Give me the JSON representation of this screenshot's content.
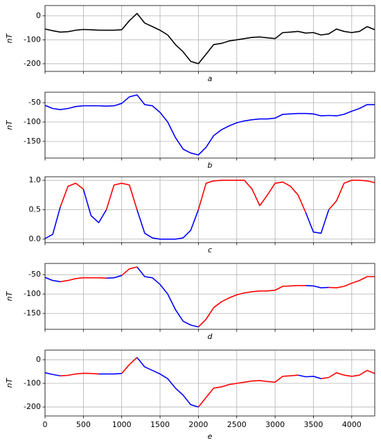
{
  "chart_data": [
    {
      "type": "line",
      "xlabel": "a",
      "ylabel": "nT",
      "grid": true,
      "x": [
        0,
        100,
        200,
        300,
        400,
        500,
        600,
        700,
        800,
        900,
        1000,
        1100,
        1200,
        1300,
        1400,
        1500,
        1600,
        1700,
        1800,
        1900,
        2000,
        2100,
        2200,
        2300,
        2400,
        2500,
        2600,
        2700,
        2800,
        2900,
        3000,
        3100,
        3200,
        3300,
        3400,
        3500,
        3600,
        3700,
        3800,
        3900,
        4000,
        4100,
        4200,
        4300
      ],
      "xlim": [
        0,
        4300
      ],
      "ylim": [
        -232,
        43
      ],
      "xticks": [
        0,
        500,
        1000,
        1500,
        2000,
        2500,
        3000,
        3500,
        4000
      ],
      "yticks": [
        0,
        -100,
        -200
      ],
      "series": [
        {
          "color": "#000000",
          "values": [
            -55,
            -62,
            -68,
            -66,
            -60,
            -57,
            -58,
            -60,
            -60,
            -60,
            -58,
            -20,
            10,
            -30,
            -45,
            -60,
            -80,
            -120,
            -150,
            -190,
            -200,
            -160,
            -120,
            -115,
            -105,
            -100,
            -95,
            -90,
            -88,
            -92,
            -95,
            -70,
            -68,
            -65,
            -72,
            -70,
            -80,
            -75,
            -55,
            -65,
            -70,
            -65,
            -45,
            -58
          ]
        }
      ]
    },
    {
      "type": "line",
      "xlabel": "b",
      "ylabel": "nT",
      "grid": true,
      "x": [
        0,
        100,
        200,
        300,
        400,
        500,
        600,
        700,
        800,
        900,
        1000,
        1100,
        1200,
        1300,
        1400,
        1500,
        1600,
        1700,
        1800,
        1900,
        2000,
        2100,
        2200,
        2300,
        2400,
        2500,
        2600,
        2700,
        2800,
        2900,
        3000,
        3100,
        3200,
        3300,
        3400,
        3500,
        3600,
        3700,
        3800,
        3900,
        4000,
        4100,
        4200,
        4300
      ],
      "xlim": [
        0,
        4300
      ],
      "ylim": [
        -193,
        -23
      ],
      "xticks": [
        0,
        500,
        1000,
        1500,
        2000,
        2500,
        3000,
        3500,
        4000
      ],
      "yticks": [
        -50,
        -100,
        -150
      ],
      "series": [
        {
          "color": "#0000ff",
          "values": [
            -57,
            -65,
            -68,
            -65,
            -60,
            -58,
            -58,
            -58,
            -59,
            -58,
            -52,
            -35,
            -30,
            -55,
            -58,
            -75,
            -100,
            -140,
            -170,
            -180,
            -185,
            -165,
            -135,
            -120,
            -110,
            -102,
            -97,
            -94,
            -92,
            -92,
            -90,
            -80,
            -79,
            -78,
            -78,
            -79,
            -84,
            -83,
            -84,
            -80,
            -72,
            -65,
            -55,
            -55
          ]
        }
      ]
    },
    {
      "type": "line",
      "xlabel": "c",
      "grid": true,
      "x": [
        0,
        100,
        200,
        300,
        400,
        500,
        600,
        700,
        800,
        900,
        1000,
        1100,
        1200,
        1300,
        1400,
        1500,
        1600,
        1700,
        1800,
        1900,
        2000,
        2100,
        2200,
        2300,
        2400,
        2500,
        2600,
        2700,
        2800,
        2900,
        3000,
        3100,
        3200,
        3300,
        3400,
        3500,
        3600,
        3700,
        3800,
        3900,
        4000,
        4100,
        4200,
        4300
      ],
      "xlim": [
        0,
        4300
      ],
      "ylim": [
        -0.06,
        1.06
      ],
      "xticks": [
        0,
        500,
        1000,
        1500,
        2000,
        2500,
        3000,
        3500,
        4000
      ],
      "yticks": [
        {
          "value": 0,
          "label": "0.0"
        },
        {
          "value": 0.5,
          "label": "0.5"
        },
        {
          "value": 1,
          "label": "1.0"
        }
      ],
      "series": [
        {
          "color": "#ff0000",
          "values": [
            null,
            null,
            0.55,
            0.9,
            0.95,
            0.85,
            null,
            null,
            0.5,
            0.92,
            0.95,
            0.92,
            0.5,
            null,
            null,
            null,
            null,
            null,
            null,
            null,
            0.5,
            0.95,
            0.99,
            1,
            1,
            1,
            1,
            0.85,
            0.57,
            0.75,
            0.95,
            0.97,
            0.9,
            0.75,
            0.45,
            null,
            null,
            0.5,
            0.65,
            0.95,
            1,
            1,
            0.99,
            0.96
          ]
        },
        {
          "color": "#0000ff",
          "values": [
            0.01,
            0.08,
            0.55,
            null,
            null,
            0.85,
            0.4,
            0.28,
            0.5,
            null,
            null,
            null,
            0.5,
            0.1,
            0.02,
            0,
            0,
            0,
            0.02,
            0.15,
            0.5,
            null,
            null,
            null,
            null,
            null,
            null,
            null,
            null,
            null,
            null,
            null,
            null,
            null,
            0.45,
            0.12,
            0.1,
            0.5,
            null,
            null,
            null,
            null,
            null,
            null
          ]
        }
      ]
    },
    {
      "type": "line",
      "xlabel": "d",
      "ylabel": "nT",
      "grid": true,
      "x": [
        0,
        100,
        200,
        300,
        400,
        500,
        600,
        700,
        800,
        900,
        1000,
        1100,
        1200,
        1300,
        1400,
        1500,
        1600,
        1700,
        1800,
        1900,
        2000,
        2100,
        2200,
        2300,
        2400,
        2500,
        2600,
        2700,
        2800,
        2900,
        3000,
        3100,
        3200,
        3300,
        3400,
        3500,
        3600,
        3700,
        3800,
        3900,
        4000,
        4100,
        4200,
        4300
      ],
      "xlim": [
        0,
        4300
      ],
      "ylim": [
        -191,
        -21
      ],
      "xticks": [
        0,
        500,
        1000,
        1500,
        2000,
        2500,
        3000,
        3500,
        4000
      ],
      "yticks": [
        -50,
        -100,
        -150
      ],
      "series": [
        {
          "color": "#ff0000",
          "values": [
            null,
            null,
            -68,
            -65,
            -60,
            -58,
            -58,
            -58,
            -59,
            null,
            -52,
            -35,
            -30,
            null,
            null,
            null,
            null,
            null,
            null,
            null,
            -185,
            -165,
            -135,
            -120,
            -110,
            -102,
            -97,
            -94,
            -92,
            -92,
            -90,
            -80,
            -79,
            -78,
            -78,
            null,
            null,
            -83,
            -84,
            -80,
            -72,
            -65,
            -55,
            -55
          ]
        },
        {
          "color": "#0000ff",
          "values": [
            -57,
            -65,
            -68,
            null,
            null,
            null,
            null,
            null,
            -59,
            -58,
            -52,
            null,
            -30,
            -55,
            -58,
            -75,
            -100,
            -140,
            -170,
            -180,
            -185,
            null,
            null,
            null,
            null,
            null,
            null,
            null,
            null,
            null,
            null,
            null,
            null,
            null,
            -78,
            -79,
            -84,
            -83,
            null,
            null,
            null,
            null,
            null,
            null
          ]
        }
      ]
    },
    {
      "type": "line",
      "xlabel": "e",
      "ylabel": "nT",
      "grid": true,
      "x": [
        0,
        100,
        200,
        300,
        400,
        500,
        600,
        700,
        800,
        900,
        1000,
        1100,
        1200,
        1300,
        1400,
        1500,
        1600,
        1700,
        1800,
        1900,
        2000,
        2100,
        2200,
        2300,
        2400,
        2500,
        2600,
        2700,
        2800,
        2900,
        3000,
        3100,
        3200,
        3300,
        3400,
        3500,
        3600,
        3700,
        3800,
        3900,
        4000,
        4100,
        4200,
        4300
      ],
      "xlim": [
        0,
        4300
      ],
      "ylim": [
        -238,
        41
      ],
      "xticks": [
        0,
        500,
        1000,
        1500,
        2000,
        2500,
        3000,
        3500,
        4000
      ],
      "yticks": [
        0,
        -100,
        -200
      ],
      "series": [
        {
          "color": "#ff0000",
          "values": [
            null,
            null,
            -68,
            -66,
            -60,
            -57,
            -58,
            -60,
            null,
            null,
            -58,
            -20,
            10,
            null,
            null,
            null,
            null,
            null,
            null,
            null,
            -200,
            -160,
            -120,
            -115,
            -105,
            -100,
            -95,
            -90,
            -88,
            -92,
            -95,
            -70,
            -68,
            -65,
            null,
            null,
            -80,
            -75,
            -55,
            -65,
            -70,
            -65,
            -45,
            -58
          ]
        },
        {
          "color": "#0000ff",
          "values": [
            -55,
            -62,
            -68,
            null,
            null,
            null,
            null,
            -60,
            -60,
            -60,
            -58,
            null,
            10,
            -30,
            -45,
            -60,
            -80,
            -120,
            -150,
            -190,
            -200,
            null,
            null,
            null,
            null,
            null,
            null,
            null,
            null,
            null,
            null,
            null,
            null,
            -65,
            -72,
            -70,
            -80,
            null,
            null,
            null,
            null,
            null,
            null,
            null
          ]
        }
      ]
    }
  ]
}
